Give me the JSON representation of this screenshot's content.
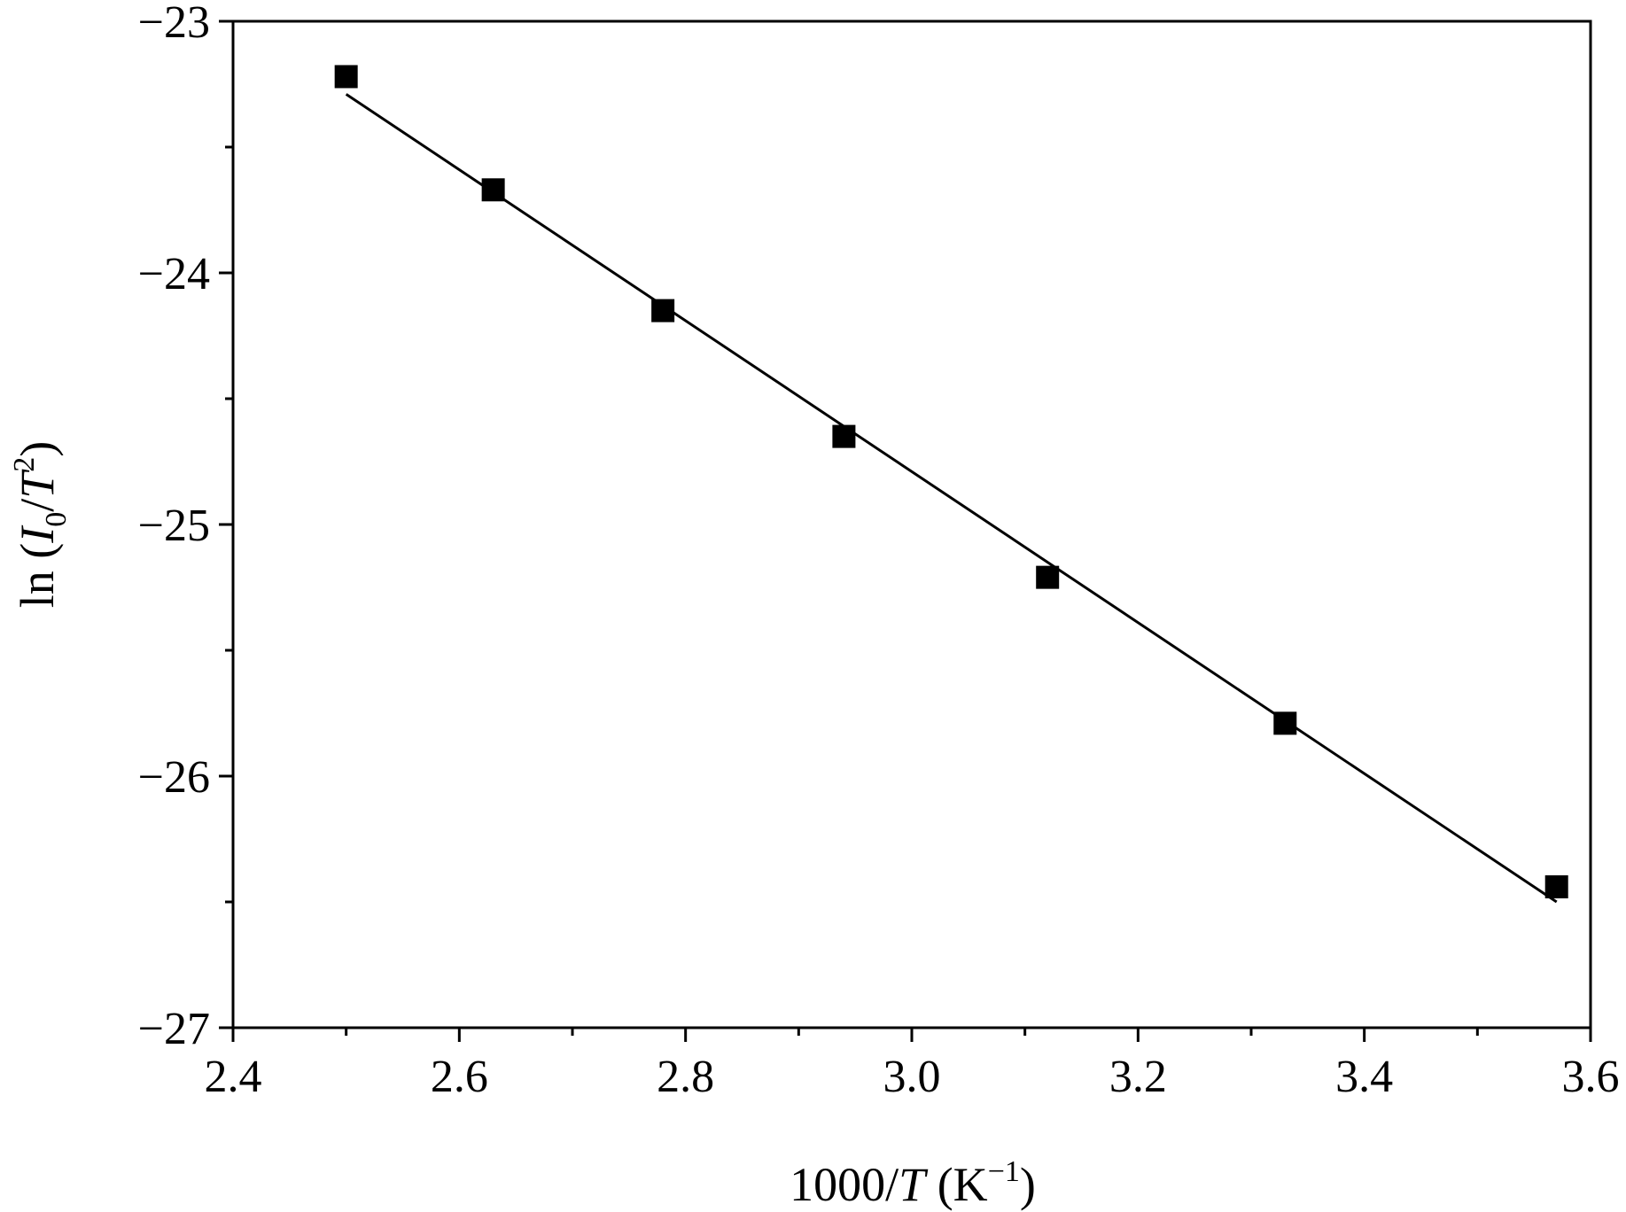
{
  "chart_data": {
    "type": "scatter",
    "title": "",
    "xlabel": {
      "prefix": "1000/",
      "italic": "T",
      "unit_open": " (K",
      "unit_sup": "−1",
      "unit_close": ")"
    },
    "ylabel": {
      "prefix": "ln (",
      "italic_1": "I",
      "sub": "0",
      "mid": "/",
      "italic_2": "T",
      "sup": "2",
      "close": ")"
    },
    "xlim": [
      2.4,
      3.6
    ],
    "ylim": [
      -27,
      -23
    ],
    "x_ticks": [
      "2.4",
      "2.6",
      "2.8",
      "3.0",
      "3.2",
      "3.4",
      "3.6"
    ],
    "y_ticks": [
      "−27",
      "−26",
      "−25",
      "−24",
      "−23"
    ],
    "grid": false,
    "series": [
      {
        "marker": "square",
        "color": "#000000",
        "points": [
          {
            "x": 2.5,
            "y": -23.22
          },
          {
            "x": 2.63,
            "y": -23.67
          },
          {
            "x": 2.78,
            "y": -24.15
          },
          {
            "x": 2.94,
            "y": -24.65
          },
          {
            "x": 3.12,
            "y": -25.21
          },
          {
            "x": 3.33,
            "y": -25.79
          },
          {
            "x": 3.57,
            "y": -26.44
          }
        ]
      }
    ],
    "fit_line": {
      "x": [
        2.5,
        3.57
      ],
      "y": [
        -23.29,
        -26.5
      ],
      "color": "#000000"
    }
  }
}
